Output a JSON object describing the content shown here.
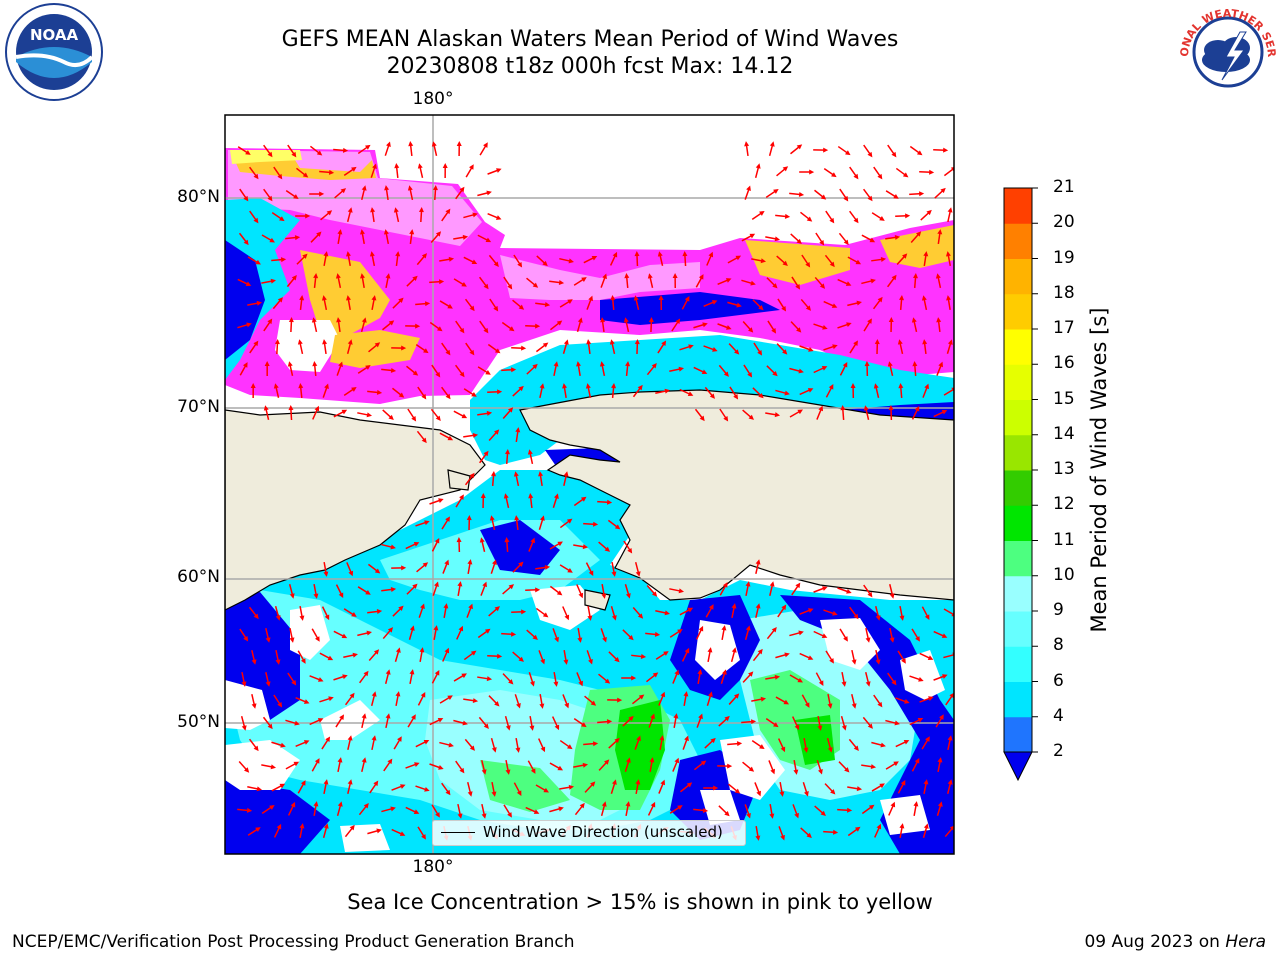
{
  "title": {
    "line1": "GEFS MEAN Alaskan Waters Mean Period of Wind Waves",
    "line2": "20230808 t18z 000h fcst   Max: 14.12"
  },
  "logos": {
    "left_icon": "noaa-logo-icon",
    "left_text": "NOAA",
    "right_icon": "nws-logo-icon",
    "right_text": "NATIONAL WEATHER SERVICE"
  },
  "map": {
    "lon_labels": [
      "180°",
      "180°"
    ],
    "lat_labels": [
      "80°N",
      "70°N",
      "60°N",
      "50°N"
    ],
    "land_color": "#efecdc",
    "ice_colors": [
      "#ff33ff",
      "#ff99ff",
      "#ffcc33",
      "#ffff66"
    ],
    "wave_colors": [
      "#0000ee",
      "#1f75fe",
      "#00e5ff",
      "#66ffff",
      "#99ffff",
      "#33dd66",
      "#00cc00"
    ],
    "arrow_color": "#ff0000"
  },
  "colorbar": {
    "label": "Mean Period of Wind Waves [s]",
    "ticks": [
      "2",
      "4",
      "6",
      "8",
      "9",
      "10",
      "11",
      "12",
      "13",
      "14",
      "15",
      "16",
      "17",
      "18",
      "19",
      "20",
      "21"
    ],
    "colors": [
      "#1f75fe",
      "#00e5ff",
      "#33ffff",
      "#66ffff",
      "#99ffff",
      "#4dff80",
      "#00e600",
      "#33cc00",
      "#99e600",
      "#ccff00",
      "#e6ff00",
      "#ffff00",
      "#ffcc00",
      "#ffb300",
      "#ff8000",
      "#ff4000",
      "#ff0000"
    ],
    "extend_color": "#0000ee"
  },
  "legend": {
    "text": "Wind Wave Direction (unscaled)"
  },
  "caption": "Sea Ice Concentration > 15% is shown in pink to yellow",
  "footer": {
    "left": "NCEP/EMC/Verification Post Processing Product Generation Branch",
    "right_date": "09 Aug 2023 on ",
    "right_host": "Hera"
  }
}
